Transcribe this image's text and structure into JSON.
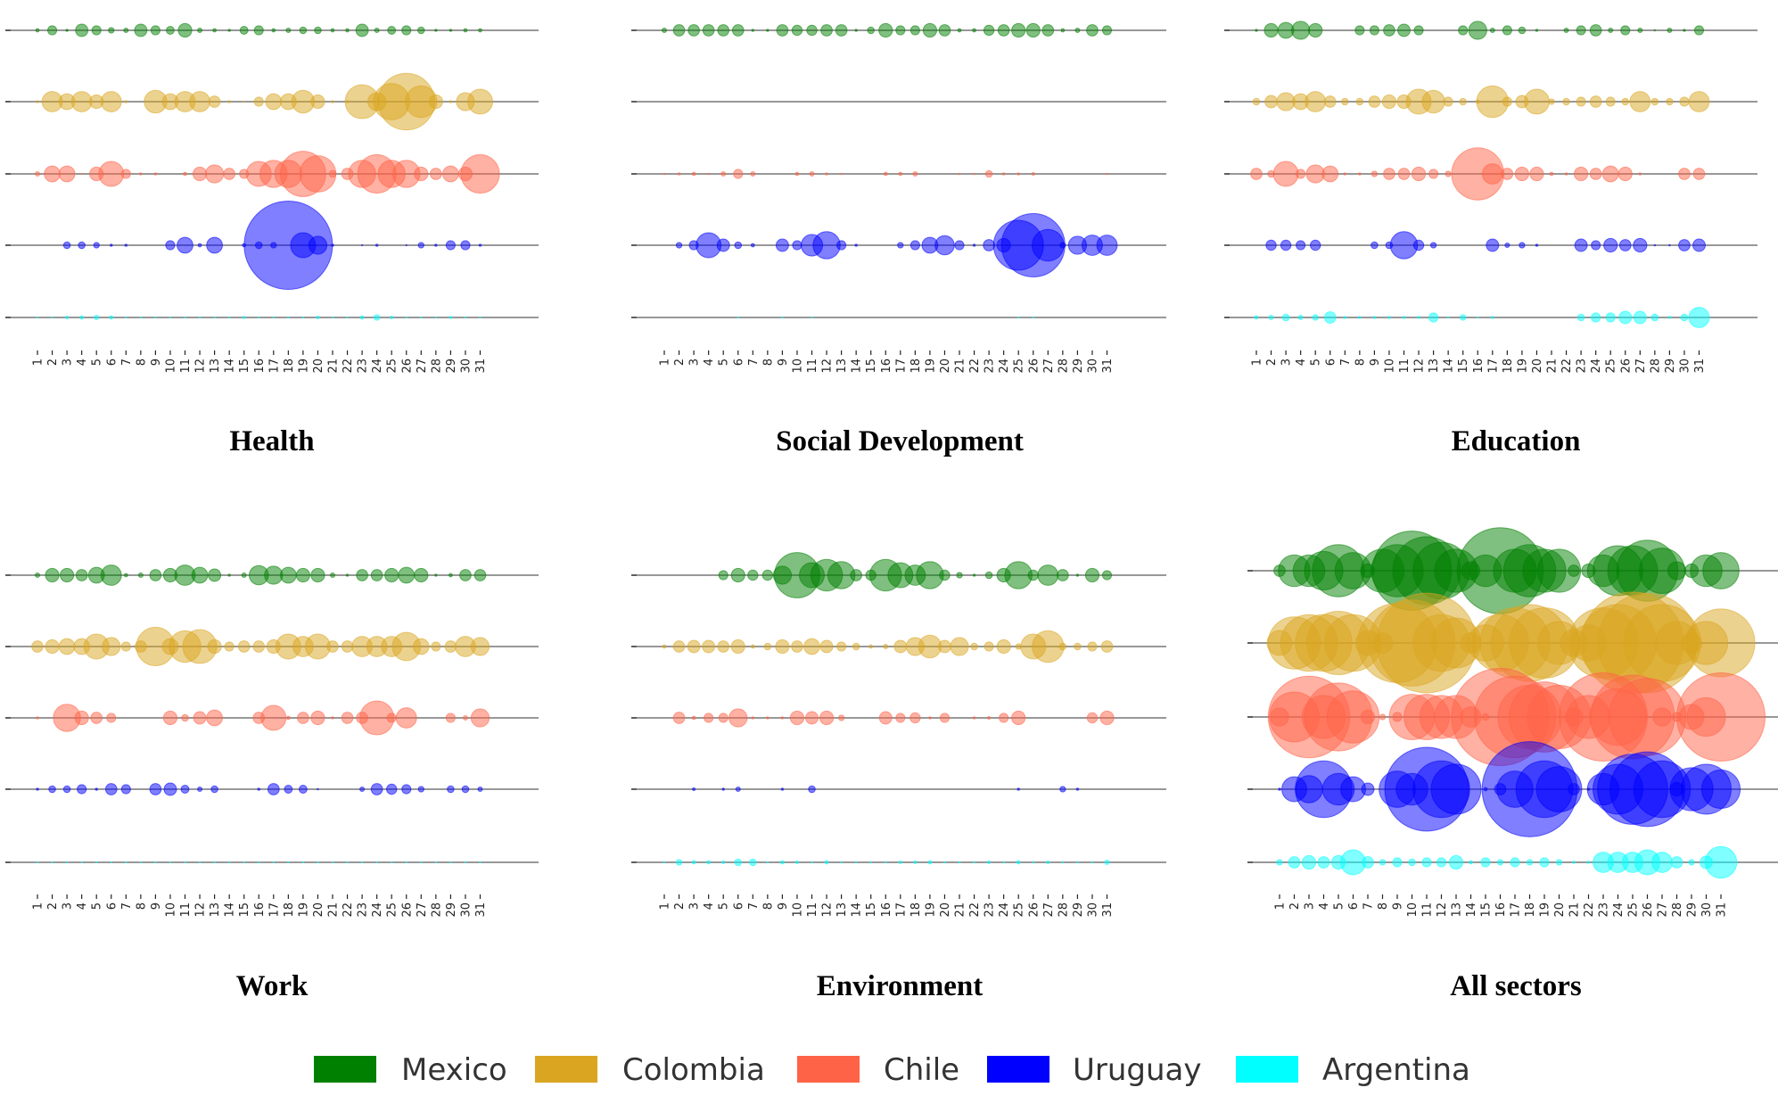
{
  "chart_data": {
    "type": "scatter",
    "subtype": "bubble",
    "x": [
      1,
      2,
      3,
      4,
      5,
      6,
      7,
      8,
      9,
      10,
      11,
      12,
      13,
      14,
      15,
      16,
      17,
      18,
      19,
      20,
      21,
      22,
      23,
      24,
      25,
      26,
      27,
      28,
      29,
      30,
      31
    ],
    "x_tick_labels": [
      "1",
      "2",
      "3",
      "4",
      "5",
      "6",
      "7",
      "8",
      "9",
      "10",
      "11",
      "12",
      "13",
      "14",
      "15",
      "16",
      "17",
      "18",
      "19",
      "20",
      "21",
      "22",
      "23",
      "24",
      "25",
      "26",
      "27",
      "28",
      "29",
      "30",
      "31"
    ],
    "rows": [
      "Mexico",
      "Colombia",
      "Chile",
      "Uruguay",
      "Argentina"
    ],
    "colors": {
      "Mexico": "#008000",
      "Colombia": "#DAA520",
      "Chile": "#FF6347",
      "Uruguay": "#0000FF",
      "Argentina": "#00FFFF"
    },
    "size_note": "relative bubble size (estimated, unlabeled)",
    "grid": false,
    "legend": {
      "placement": "bottom",
      "entries": [
        "Mexico",
        "Colombia",
        "Chile",
        "Uruguay",
        "Argentina"
      ]
    },
    "panels": [
      {
        "title": "Health",
        "series": {
          "Mexico": [
            1.5,
            4,
            1,
            5.5,
            4,
            2.5,
            2,
            5.5,
            4,
            3.5,
            6,
            2,
            1.5,
            1,
            3.5,
            4,
            1.5,
            2,
            3,
            3,
            1.5,
            1.5,
            5.5,
            2,
            3.5,
            4,
            3,
            1,
            1,
            1.5,
            1.5
          ],
          "Colombia": [
            1,
            9,
            7,
            9,
            6,
            9,
            1,
            0,
            10,
            7,
            9,
            9,
            5,
            1,
            0.5,
            4,
            7,
            7,
            10,
            6,
            1,
            1,
            15,
            8,
            16,
            25,
            14,
            6,
            1,
            8,
            11
          ],
          "Chile": [
            2,
            7,
            7,
            0.5,
            6,
            11,
            4,
            1,
            1,
            0,
            1.5,
            6,
            8,
            5,
            4,
            11,
            12,
            12,
            20,
            16,
            3,
            5,
            12,
            17,
            12,
            12,
            6,
            5,
            7,
            6,
            17
          ],
          "Uruguay": [
            0,
            0,
            3,
            3,
            2.5,
            1,
            1,
            0,
            0,
            4,
            7,
            1.5,
            7,
            0,
            1.5,
            3,
            2.5,
            39,
            11,
            8,
            1,
            0,
            0.5,
            1,
            0,
            0.5,
            2.5,
            1,
            4,
            4,
            1
          ],
          "Argentina": [
            0.5,
            0.5,
            1.2,
            1.5,
            2,
            1.5,
            0.5,
            0.5,
            0.5,
            0.5,
            0.5,
            0.5,
            0.5,
            0.5,
            1,
            0.5,
            0.5,
            0.5,
            0.5,
            1.2,
            0.5,
            0.5,
            1.5,
            2.5,
            1.2,
            0.5,
            0.5,
            0.5,
            1,
            0.5,
            0.5
          ]
        }
      },
      {
        "title": "Social Development",
        "series": {
          "Mexico": [
            2,
            5,
            5,
            5,
            5,
            5,
            1,
            1,
            5,
            4.5,
            4.5,
            5,
            5,
            1,
            3,
            6,
            4,
            4,
            6,
            5,
            1.5,
            1.5,
            4.5,
            5,
            6,
            6,
            5,
            1.5,
            2,
            5,
            4
          ],
          "Colombia": [
            0,
            0,
            0,
            0,
            0,
            0,
            0,
            0,
            0,
            0,
            0,
            0,
            0,
            0,
            0,
            0,
            0,
            0,
            0,
            0,
            0,
            0,
            0,
            0,
            0,
            0,
            0,
            0,
            0,
            0,
            0
          ],
          "Chile": [
            0.6,
            1,
            1.5,
            0.6,
            2,
            4,
            2,
            0,
            0,
            1.5,
            2,
            1,
            0.6,
            0,
            0,
            1.5,
            1.5,
            2,
            0,
            0,
            0.6,
            0.6,
            3,
            1,
            1,
            1.2,
            0,
            0,
            0,
            0,
            0.6
          ],
          "Uruguay": [
            0,
            2.5,
            4,
            11,
            5.5,
            3,
            1.5,
            0,
            5.5,
            4,
            9.5,
            12,
            4,
            1,
            0,
            0,
            2.5,
            4,
            7,
            8.5,
            4,
            1,
            5,
            6,
            22,
            28,
            14,
            2.5,
            8,
            9,
            9
          ],
          "Argentina": [
            0,
            0,
            0,
            0,
            0,
            0.5,
            0,
            0,
            0.5,
            0,
            0.5,
            0,
            0,
            0,
            0,
            0,
            0,
            0,
            0,
            0,
            0,
            0,
            0,
            0,
            0.5,
            0.5,
            0,
            0,
            0,
            0,
            0
          ]
        }
      },
      {
        "title": "Education",
        "series": {
          "Mexico": [
            1,
            6,
            7,
            8,
            6,
            0,
            0,
            4,
            4,
            5,
            5.5,
            4,
            0,
            0,
            4,
            8,
            2,
            4,
            3,
            1,
            0,
            2,
            4,
            5,
            2,
            4,
            2,
            0.6,
            2,
            1,
            4
          ],
          "Colombia": [
            3,
            5.5,
            8,
            7,
            9,
            5,
            3,
            3,
            5,
            6,
            6,
            11,
            10,
            4,
            3,
            1.5,
            14,
            4,
            5.5,
            11,
            2.5,
            3,
            4,
            5,
            4,
            3,
            9,
            3,
            3,
            4,
            9
          ],
          "Chile": [
            5,
            3,
            11,
            4,
            8,
            7,
            1,
            1,
            2.5,
            5,
            5,
            6,
            4,
            2.5,
            0,
            23,
            9,
            5,
            6,
            6,
            1.5,
            1,
            6,
            5,
            7,
            6,
            1,
            0,
            0,
            5,
            5
          ],
          "Uruguay": [
            0,
            4.5,
            4.5,
            4,
            4.5,
            0,
            0,
            0,
            3,
            3,
            12,
            4.5,
            2.5,
            0,
            0,
            0,
            5.5,
            2,
            2.5,
            1,
            0,
            0,
            5.5,
            4,
            6,
            5,
            6,
            0.6,
            0.6,
            5,
            5.5
          ],
          "Argentina": [
            1.5,
            2,
            3,
            2,
            2.5,
            5,
            1,
            1,
            1,
            1,
            1,
            1,
            4,
            0.6,
            2.5,
            0.6,
            1,
            0,
            0,
            0,
            0,
            0,
            3,
            4,
            4,
            5.5,
            5.5,
            3,
            1,
            3,
            9
          ]
        }
      },
      {
        "title": "Work",
        "series": {
          "Mexico": [
            2,
            6,
            6,
            5,
            7,
            9,
            1.5,
            2,
            5,
            6,
            9,
            7,
            5.5,
            1,
            2,
            8.5,
            8,
            7,
            6,
            6,
            2,
            1,
            5,
            5,
            6,
            7,
            6,
            1,
            1.5,
            5,
            5
          ],
          "Colombia": [
            5,
            6,
            7,
            7,
            11,
            8,
            4,
            5,
            17,
            7,
            14,
            15,
            6,
            4,
            5,
            5,
            6,
            11,
            9,
            11,
            5,
            5,
            9,
            9,
            9,
            12.5,
            7,
            4,
            5,
            9,
            8
          ],
          "Chile": [
            1,
            0,
            12,
            6,
            5,
            4,
            0,
            0,
            0,
            6,
            3,
            5.5,
            7,
            0,
            0,
            5,
            11,
            1.5,
            5,
            6,
            1,
            5,
            5,
            15,
            4,
            9,
            0,
            0,
            4,
            2,
            8
          ],
          "Uruguay": [
            1,
            3,
            3,
            4,
            1,
            5,
            4,
            0,
            5,
            5.5,
            3.5,
            2,
            3,
            0,
            0,
            1,
            5,
            3.5,
            3.5,
            0.6,
            0,
            0,
            2,
            5,
            4.5,
            4,
            2.5,
            0,
            3,
            3,
            2
          ],
          "Argentina": [
            0.5,
            0.5,
            0.5,
            0.5,
            0.5,
            0.5,
            0.5,
            0.5,
            0.5,
            0.5,
            0.5,
            0.5,
            0.5,
            0.5,
            0.5,
            0.5,
            0.5,
            0.5,
            0.5,
            0.5,
            0.5,
            0.5,
            0.5,
            0.5,
            0.5,
            0.5,
            0.5,
            0.5,
            0.5,
            0.5,
            0.5
          ]
        }
      },
      {
        "title": "Environment",
        "series": {
          "Mexico": [
            0,
            0,
            0,
            0,
            4,
            6,
            4.5,
            4.5,
            8,
            20,
            11,
            14,
            12,
            5,
            4.5,
            14,
            11,
            9,
            12,
            4.5,
            2.5,
            1,
            3,
            6,
            12,
            4.5,
            9,
            5,
            1,
            6,
            4
          ],
          "Colombia": [
            1.5,
            5,
            5.5,
            5.5,
            5,
            6,
            1.5,
            3,
            6,
            5,
            7,
            5.5,
            4,
            3,
            1.5,
            2,
            5.5,
            8,
            10,
            5.5,
            8,
            3,
            4,
            6,
            2.5,
            11,
            14,
            3,
            3,
            4,
            5
          ],
          "Chile": [
            0,
            5,
            1.5,
            4,
            4,
            8,
            1,
            1,
            1,
            6,
            5.5,
            6,
            2.5,
            0,
            0,
            5.5,
            4,
            4.5,
            1,
            4,
            0,
            1,
            1.2,
            4,
            6,
            0,
            0,
            0,
            0,
            4.5,
            6
          ],
          "Uruguay": [
            0,
            0,
            1.2,
            0,
            1,
            2,
            0,
            0,
            1,
            0,
            3,
            0,
            0,
            0,
            0,
            0,
            0,
            0,
            0,
            0,
            0,
            0,
            0,
            0,
            1,
            0,
            0,
            2.5,
            1,
            0,
            0
          ],
          "Argentina": [
            0.6,
            2.5,
            1.5,
            1.5,
            1.2,
            3,
            3,
            0.6,
            1.5,
            1.2,
            0.6,
            1.5,
            0.6,
            0.6,
            0.6,
            0.6,
            1.2,
            1.2,
            1.5,
            0.6,
            0.6,
            0.6,
            1.2,
            0.6,
            1.5,
            0.6,
            1.2,
            0.6,
            0.6,
            0.6,
            2
          ]
        }
      },
      {
        "title": "All sectors",
        "series": {
          "Mexico": [
            5,
            14,
            14,
            17,
            23,
            16,
            6,
            19,
            23,
            35,
            30,
            25,
            19,
            8,
            14,
            38,
            19,
            23,
            19,
            19,
            5,
            6,
            14,
            22,
            22,
            27,
            20,
            8,
            6,
            14,
            16
          ],
          "Colombia": [
            11,
            23,
            25,
            25,
            28,
            25,
            11,
            9,
            35,
            38,
            44,
            25,
            22,
            9,
            16,
            25,
            31,
            34,
            31,
            19,
            12,
            16,
            31,
            34,
            45,
            44,
            34,
            19,
            9,
            19,
            30
          ],
          "Chile": [
            8,
            22,
            36,
            19,
            30,
            23,
            6,
            2.5,
            4,
            20,
            20,
            19,
            19,
            9,
            3,
            43,
            36,
            28,
            31,
            28,
            8,
            19,
            39,
            25,
            37,
            34,
            8,
            4,
            11,
            17,
            39
          ],
          "Uruguay": [
            1,
            11,
            12,
            25,
            14,
            11,
            5.5,
            0,
            16,
            14,
            37,
            25,
            22,
            0,
            1.5,
            5,
            16,
            42,
            25,
            20,
            5,
            1,
            14,
            22,
            31,
            33,
            25,
            6,
            19,
            22,
            17
          ],
          "Argentina": [
            2.5,
            5,
            6,
            5,
            6,
            11,
            5,
            2.5,
            4,
            3,
            4,
            4,
            6,
            1.5,
            4,
            2.5,
            4,
            2.5,
            4,
            2.5,
            1,
            1,
            9,
            9,
            9,
            11,
            9,
            5,
            2.5,
            5.5,
            14
          ]
        }
      }
    ]
  }
}
